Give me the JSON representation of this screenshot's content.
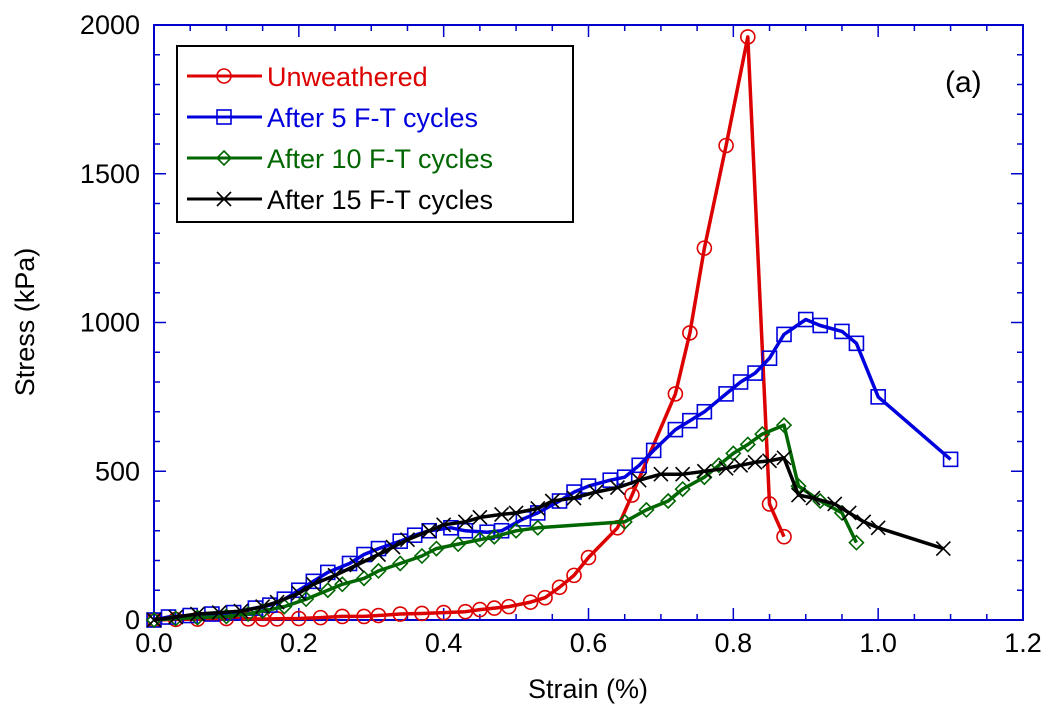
{
  "chart_data": {
    "type": "line",
    "title": "",
    "xlabel": "Strain (%)",
    "ylabel": "Stress (kPa)",
    "xlim": [
      0,
      1.2
    ],
    "ylim": [
      0,
      2000
    ],
    "x_ticks": [
      "0.0",
      "0.2",
      "0.4",
      "0.6",
      "0.8",
      "1.0",
      "1.2"
    ],
    "y_ticks": [
      "0",
      "500",
      "1000",
      "1500",
      "2000"
    ],
    "x_tick_values": [
      0,
      0.2,
      0.4,
      0.6,
      0.8,
      1.0,
      1.2
    ],
    "y_tick_values": [
      0,
      500,
      1000,
      1500,
      2000
    ],
    "annotation": "(a)",
    "grid": false,
    "legend_position": "top-left",
    "axis_color": "#0000cc",
    "series": [
      {
        "name": "Unweathered",
        "color": "#dd0000",
        "marker": "circle",
        "points": [
          [
            0.0,
            0
          ],
          [
            0.03,
            2
          ],
          [
            0.06,
            3
          ],
          [
            0.1,
            5
          ],
          [
            0.13,
            4
          ],
          [
            0.15,
            3
          ],
          [
            0.17,
            4
          ],
          [
            0.2,
            5
          ],
          [
            0.23,
            8
          ],
          [
            0.26,
            12
          ],
          [
            0.29,
            12
          ],
          [
            0.31,
            15
          ],
          [
            0.34,
            20
          ],
          [
            0.37,
            22
          ],
          [
            0.4,
            25
          ],
          [
            0.43,
            28
          ],
          [
            0.45,
            35
          ],
          [
            0.47,
            40
          ],
          [
            0.49,
            45
          ],
          [
            0.52,
            60
          ],
          [
            0.54,
            75
          ],
          [
            0.56,
            110
          ],
          [
            0.58,
            150
          ],
          [
            0.6,
            210
          ],
          [
            0.64,
            310
          ],
          [
            0.66,
            420
          ],
          [
            0.72,
            760
          ],
          [
            0.74,
            965
          ],
          [
            0.76,
            1250
          ],
          [
            0.79,
            1595
          ],
          [
            0.82,
            1960
          ],
          [
            0.85,
            390
          ],
          [
            0.87,
            280
          ]
        ]
      },
      {
        "name": "After 5 F-T cycles",
        "color": "#0000dd",
        "marker": "square",
        "points": [
          [
            0.0,
            0
          ],
          [
            0.02,
            10
          ],
          [
            0.05,
            15
          ],
          [
            0.08,
            20
          ],
          [
            0.11,
            25
          ],
          [
            0.14,
            40
          ],
          [
            0.16,
            50
          ],
          [
            0.18,
            70
          ],
          [
            0.2,
            100
          ],
          [
            0.22,
            130
          ],
          [
            0.24,
            160
          ],
          [
            0.27,
            190
          ],
          [
            0.29,
            220
          ],
          [
            0.31,
            240
          ],
          [
            0.34,
            265
          ],
          [
            0.36,
            285
          ],
          [
            0.38,
            300
          ],
          [
            0.41,
            310
          ],
          [
            0.43,
            300
          ],
          [
            0.46,
            295
          ],
          [
            0.48,
            300
          ],
          [
            0.51,
            340
          ],
          [
            0.53,
            360
          ],
          [
            0.56,
            400
          ],
          [
            0.58,
            430
          ],
          [
            0.6,
            450
          ],
          [
            0.63,
            470
          ],
          [
            0.65,
            480
          ],
          [
            0.67,
            520
          ],
          [
            0.69,
            570
          ],
          [
            0.72,
            640
          ],
          [
            0.74,
            670
          ],
          [
            0.76,
            700
          ],
          [
            0.79,
            760
          ],
          [
            0.81,
            800
          ],
          [
            0.83,
            830
          ],
          [
            0.85,
            880
          ],
          [
            0.87,
            960
          ],
          [
            0.9,
            1010
          ],
          [
            0.92,
            990
          ],
          [
            0.95,
            970
          ],
          [
            0.97,
            930
          ],
          [
            1.0,
            750
          ],
          [
            1.1,
            540
          ]
        ]
      },
      {
        "name": "After 10 F-T cycles",
        "color": "#006600",
        "marker": "diamond",
        "points": [
          [
            0.0,
            0
          ],
          [
            0.03,
            5
          ],
          [
            0.06,
            8
          ],
          [
            0.1,
            12
          ],
          [
            0.13,
            20
          ],
          [
            0.15,
            30
          ],
          [
            0.18,
            45
          ],
          [
            0.21,
            70
          ],
          [
            0.24,
            100
          ],
          [
            0.26,
            120
          ],
          [
            0.29,
            140
          ],
          [
            0.31,
            165
          ],
          [
            0.34,
            190
          ],
          [
            0.37,
            215
          ],
          [
            0.39,
            240
          ],
          [
            0.42,
            255
          ],
          [
            0.45,
            270
          ],
          [
            0.47,
            280
          ],
          [
            0.5,
            300
          ],
          [
            0.53,
            310
          ],
          [
            0.65,
            330
          ],
          [
            0.68,
            370
          ],
          [
            0.71,
            400
          ],
          [
            0.73,
            440
          ],
          [
            0.76,
            480
          ],
          [
            0.78,
            520
          ],
          [
            0.8,
            560
          ],
          [
            0.82,
            590
          ],
          [
            0.84,
            625
          ],
          [
            0.87,
            655
          ],
          [
            0.89,
            450
          ],
          [
            0.92,
            400
          ],
          [
            0.95,
            360
          ],
          [
            0.97,
            260
          ]
        ]
      },
      {
        "name": "After 15 F-T cycles",
        "color": "#000000",
        "marker": "x",
        "points": [
          [
            0.0,
            0
          ],
          [
            0.03,
            10
          ],
          [
            0.06,
            20
          ],
          [
            0.09,
            25
          ],
          [
            0.12,
            30
          ],
          [
            0.15,
            45
          ],
          [
            0.17,
            60
          ],
          [
            0.2,
            90
          ],
          [
            0.22,
            120
          ],
          [
            0.25,
            150
          ],
          [
            0.28,
            185
          ],
          [
            0.31,
            220
          ],
          [
            0.33,
            245
          ],
          [
            0.35,
            270
          ],
          [
            0.38,
            300
          ],
          [
            0.4,
            320
          ],
          [
            0.43,
            330
          ],
          [
            0.45,
            345
          ],
          [
            0.48,
            355
          ],
          [
            0.5,
            360
          ],
          [
            0.53,
            375
          ],
          [
            0.55,
            400
          ],
          [
            0.58,
            410
          ],
          [
            0.61,
            430
          ],
          [
            0.64,
            445
          ],
          [
            0.67,
            470
          ],
          [
            0.7,
            490
          ],
          [
            0.73,
            490
          ],
          [
            0.76,
            500
          ],
          [
            0.79,
            510
          ],
          [
            0.81,
            520
          ],
          [
            0.83,
            530
          ],
          [
            0.85,
            535
          ],
          [
            0.87,
            545
          ],
          [
            0.89,
            420
          ],
          [
            0.91,
            410
          ],
          [
            0.94,
            390
          ],
          [
            0.96,
            360
          ],
          [
            0.98,
            330
          ],
          [
            1.0,
            310
          ],
          [
            1.09,
            240
          ]
        ]
      }
    ]
  }
}
